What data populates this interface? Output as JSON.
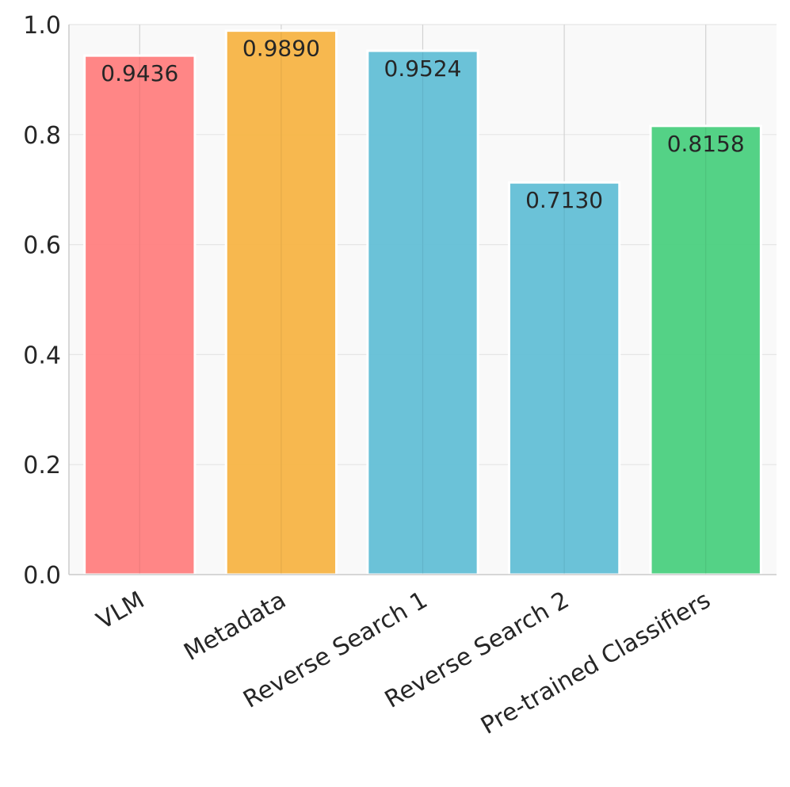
{
  "chart_data": {
    "type": "bar",
    "title": "",
    "xlabel": "",
    "ylabel": "",
    "categories": [
      "VLM",
      "Metadata",
      "Reverse Search 1",
      "Reverse Search 2",
      "Pre-trained Classifiers"
    ],
    "values": [
      0.9436,
      0.989,
      0.9524,
      0.713,
      0.8158
    ],
    "value_labels": [
      "0.9436",
      "0.9890",
      "0.9524",
      "0.7130",
      "0.8158"
    ],
    "colors": [
      "#ff7f7f",
      "#f7b446",
      "#63bfd6",
      "#63bfd6",
      "#4bd07f"
    ],
    "ylim": [
      0,
      1.0
    ],
    "yticks": [
      "0.0",
      "0.2",
      "0.4",
      "0.6",
      "0.8",
      "1.0"
    ],
    "grid": true,
    "legend": "none"
  }
}
